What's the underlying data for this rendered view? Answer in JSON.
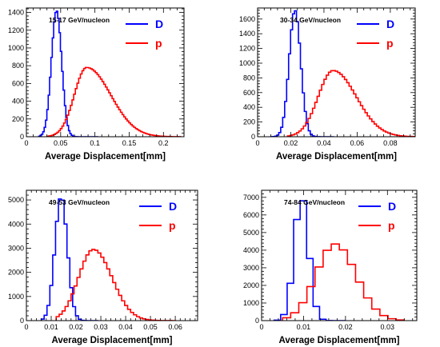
{
  "chart_data": [
    {
      "type": "histogram",
      "title": "15-17 GeV/nucleon",
      "xlabel": "Average Displacement[mm]",
      "xlim": [
        0,
        0.23
      ],
      "ylim": [
        0,
        1450
      ],
      "xticks": [
        0,
        0.05,
        0.1,
        0.15,
        0.2
      ],
      "xtick_labels": [
        "0",
        "0.05",
        "0.1",
        "0.15",
        "0.2"
      ],
      "yticks": [
        0,
        200,
        400,
        600,
        800,
        1000,
        1200,
        1400
      ],
      "ytick_labels": [
        "0",
        "200",
        "400",
        "600",
        "800",
        "1000",
        "1200",
        "1400"
      ],
      "legend": "top-right",
      "series": [
        {
          "name": "D",
          "color": "#0000ff",
          "gaussian": {
            "mean": 0.044,
            "sigma": 0.0075,
            "peak": 1420
          },
          "range": [
            0.018,
            0.105
          ],
          "bins": 44
        },
        {
          "name": "p",
          "color": "#ff0000",
          "gaussian": {
            "mean": 0.088,
            "sigma_left": 0.018,
            "sigma_right": 0.035,
            "peak": 780
          },
          "range": [
            0.03,
            0.225
          ],
          "bins": 80
        }
      ]
    },
    {
      "type": "histogram",
      "title": "30-34 GeV/nucleon",
      "xlabel": "Average Displacement[mm]",
      "xlim": [
        0,
        0.095
      ],
      "ylim": [
        0,
        1750
      ],
      "xticks": [
        0,
        0.02,
        0.04,
        0.06,
        0.08
      ],
      "xtick_labels": [
        "0",
        "0.02",
        "0.04",
        "0.06",
        "0.08"
      ],
      "yticks": [
        0,
        200,
        400,
        600,
        800,
        1000,
        1200,
        1400,
        1600
      ],
      "ytick_labels": [
        "0",
        "200",
        "400",
        "600",
        "800",
        "1000",
        "1200",
        "1400",
        "1600"
      ],
      "legend": "top-right",
      "series": [
        {
          "name": "D",
          "color": "#0000ff",
          "gaussian": {
            "mean": 0.0225,
            "sigma": 0.0035,
            "peak": 1720
          },
          "range": [
            0.008,
            0.046
          ],
          "bins": 32
        },
        {
          "name": "p",
          "color": "#ff0000",
          "gaussian": {
            "mean": 0.0455,
            "sigma_left": 0.009,
            "sigma_right": 0.014,
            "peak": 900
          },
          "range": [
            0.018,
            0.095
          ],
          "bins": 56
        }
      ]
    },
    {
      "type": "histogram",
      "title": "49-53 GeV/nucleon",
      "xlabel": "Average Displacement[mm]",
      "xlim": [
        0,
        0.069
      ],
      "ylim": [
        0,
        5400
      ],
      "xticks": [
        0,
        0.01,
        0.02,
        0.03,
        0.04,
        0.05,
        0.06
      ],
      "xtick_labels": [
        "0",
        "0.01",
        "0.02",
        "0.03",
        "0.04",
        "0.05",
        "0.06"
      ],
      "yticks": [
        0,
        1000,
        2000,
        3000,
        4000,
        5000
      ],
      "ytick_labels": [
        "0",
        "1000",
        "2000",
        "3000",
        "4000",
        "5000"
      ],
      "legend": "top-right",
      "series": [
        {
          "name": "D",
          "color": "#0000ff",
          "gaussian": {
            "mean": 0.014,
            "sigma": 0.0025,
            "peak": 5150
          },
          "range": [
            0.006,
            0.029
          ],
          "bins": 20
        },
        {
          "name": "p",
          "color": "#ff0000",
          "gaussian": {
            "mean": 0.027,
            "sigma_left": 0.006,
            "sigma_right": 0.0075,
            "peak": 2950
          },
          "range": [
            0.012,
            0.06
          ],
          "bins": 40
        }
      ]
    },
    {
      "type": "histogram",
      "title": "74-84 GeV/nucleon",
      "xlabel": "Average Displacement[mm]",
      "xlim": [
        0,
        0.037
      ],
      "ylim": [
        0,
        7400
      ],
      "xticks": [
        0,
        0.01,
        0.02,
        0.03
      ],
      "xtick_labels": [
        "0",
        "0.01",
        "0.02",
        "0.03"
      ],
      "yticks": [
        0,
        1000,
        2000,
        3000,
        4000,
        5000,
        6000,
        7000
      ],
      "ytick_labels": [
        "0",
        "1000",
        "2000",
        "3000",
        "4000",
        "5000",
        "6000",
        "7000"
      ],
      "legend": "top-right",
      "series": [
        {
          "name": "D",
          "color": "#0000ff",
          "gaussian": {
            "mean": 0.0095,
            "sigma": 0.0017,
            "peak": 7050
          },
          "range": [
            0.003,
            0.02
          ],
          "bins": 11
        },
        {
          "name": "p",
          "color": "#ff0000",
          "gaussian": {
            "mean": 0.0175,
            "sigma_left": 0.0045,
            "sigma_right": 0.005,
            "peak": 4350
          },
          "range": [
            0.005,
            0.034
          ],
          "bins": 15
        }
      ]
    }
  ]
}
